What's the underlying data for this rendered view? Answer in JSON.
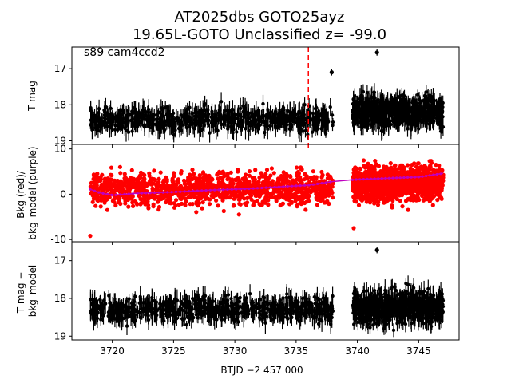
{
  "title_line1": "AT2025dbs  GOTO25ayz",
  "title_line2": "19.65L-GOTO Unclassified z= -99.0",
  "colors": {
    "data": "#000000",
    "background_points": "#ff0000",
    "background_model": "#bf00bf",
    "marker_line": "#ff0000",
    "axes": "#000000"
  },
  "chart_data": [
    {
      "type": "scatter",
      "panel": "top",
      "ylabel": "T mag",
      "annotation": "s89 cam4ccd2",
      "y_inverted": true,
      "ylim": [
        19.1,
        16.4
      ],
      "yticks": [
        17,
        18,
        19
      ],
      "xlim": [
        3716.7,
        3748.3
      ],
      "vertical_marker_x": 3736.0,
      "vertical_marker_style": "dashed",
      "series": [
        {
          "segment": 1,
          "x_range": [
            3718.2,
            3738.0
          ],
          "typical_y": [
            17.9,
            18.9
          ],
          "median_y": 18.4
        },
        {
          "segment": 2,
          "x_range": [
            3739.6,
            3747.0
          ],
          "typical_y": [
            17.6,
            18.9
          ],
          "median_y": 18.2
        }
      ],
      "outliers": [
        {
          "x": 3737.9,
          "y": 17.1
        },
        {
          "x": 3741.6,
          "y": 16.55
        }
      ]
    },
    {
      "type": "scatter",
      "panel": "middle",
      "ylabel": "Bkg (red)/\nbkg_model (purple)",
      "ylim": [
        -10.5,
        11.0
      ],
      "yticks": [
        -10,
        0,
        10
      ],
      "xlim": [
        3716.7,
        3748.3
      ],
      "series": [
        {
          "segment": 1,
          "x_range": [
            3718.2,
            3738.0
          ],
          "typical_y": [
            -4.5,
            7.0
          ]
        },
        {
          "segment": 2,
          "x_range": [
            3739.6,
            3747.0
          ],
          "typical_y": [
            -3.5,
            8.5
          ]
        }
      ],
      "outliers": [
        {
          "x": 3718.2,
          "y": -9.2
        },
        {
          "x": 3739.7,
          "y": -7.5
        }
      ],
      "model": {
        "x": [
          3718.2,
          3719.0,
          3720.0,
          3722.0,
          3725.0,
          3728.0,
          3731.0,
          3734.0,
          3736.0,
          3738.0,
          3739.6,
          3742.0,
          3745.0,
          3747.0
        ],
        "y": [
          1.1,
          0.3,
          -0.2,
          0.2,
          0.5,
          0.9,
          1.2,
          1.7,
          2.0,
          2.8,
          3.2,
          3.5,
          3.8,
          4.6
        ]
      }
    },
    {
      "type": "scatter",
      "panel": "bottom",
      "ylabel": "T mag −\nbkg_model",
      "xlabel": "BTJD −2 457 000",
      "y_inverted": true,
      "ylim": [
        19.1,
        16.5
      ],
      "yticks": [
        17,
        18,
        19
      ],
      "xlim": [
        3716.7,
        3748.3
      ],
      "xticks": [
        3720,
        3725,
        3730,
        3735,
        3740,
        3745
      ],
      "series": [
        {
          "segment": 1,
          "x_range": [
            3718.2,
            3738.0
          ],
          "typical_y": [
            17.8,
            18.8
          ],
          "median_y": 18.3
        },
        {
          "segment": 2,
          "x_range": [
            3739.6,
            3747.0
          ],
          "typical_y": [
            17.6,
            18.9
          ],
          "median_y": 18.25
        }
      ],
      "outliers": [
        {
          "x": 3741.6,
          "y": 16.72
        }
      ]
    }
  ]
}
